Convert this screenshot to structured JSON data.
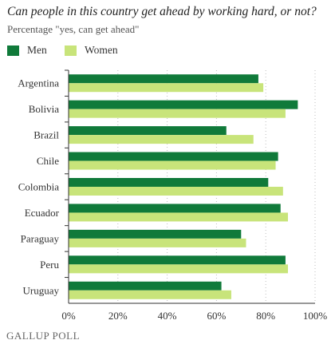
{
  "title": "Can people in this country get ahead by working hard, or not?",
  "subtitle": "Percentage \"yes, can get ahead\"",
  "footer": "GALLUP POLL",
  "colors": {
    "men": "#107a3a",
    "women": "#c8e47a",
    "grid": "#bdbdbd",
    "axis": "#333333"
  },
  "chart_data": {
    "type": "bar",
    "orientation": "horizontal",
    "categories": [
      "Argentina",
      "Bolivia",
      "Brazil",
      "Chile",
      "Colombia",
      "Ecuador",
      "Paraguay",
      "Peru",
      "Uruguay"
    ],
    "series": [
      {
        "name": "Men",
        "values": [
          77,
          93,
          64,
          85,
          81,
          86,
          70,
          88,
          62
        ]
      },
      {
        "name": "Women",
        "values": [
          79,
          88,
          75,
          84,
          87,
          89,
          72,
          89,
          66
        ]
      }
    ],
    "xlim": [
      0,
      100
    ],
    "xticks": [
      "0%",
      "20%",
      "40%",
      "60%",
      "80%",
      "100%"
    ],
    "grid": true,
    "legend_position": "top-left"
  }
}
